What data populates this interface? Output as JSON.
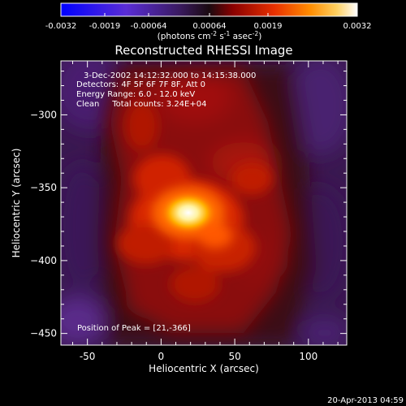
{
  "colorbar": {
    "ticks": [
      "-0.0032",
      "-0.0019",
      "-0.00064",
      "0.00064",
      "0.0019",
      "0.0032"
    ],
    "unit_main": "(photons cm",
    "unit_sup1": "-2",
    "unit_mid": " s",
    "unit_sup2": "-1",
    "unit_mid2": " asec",
    "unit_sup3": "-2",
    "unit_end": ")",
    "colors": [
      "#0000ff",
      "#5a2dd6",
      "#3a1a60",
      "#1a0a10",
      "#8a0000",
      "#e83000",
      "#ff8c00",
      "#ffd060",
      "#ffffff"
    ]
  },
  "plot": {
    "title": "Reconstructed RHESSI Image",
    "xlabel": "Heliocentric X (arcsec)",
    "ylabel": "Heliocentric Y (arcsec)",
    "xticks": [
      "-50",
      "0",
      "50",
      "100"
    ],
    "yticks": [
      "-300",
      "-350",
      "-400",
      "-450"
    ],
    "info": [
      "3-Dec-2002 14:12:32.000 to 14:15:38.000",
      "Detectors: 4F 5F 6F 7F 8F, Att 0",
      "Energy Range: 6.0 - 12.0 keV",
      "Clean     Total counts: 3.24E+04"
    ],
    "peak_label": "Position of Peak = [21,-366]",
    "peak": {
      "x": 21,
      "y": -366
    },
    "x_range": [
      -68,
      126
    ],
    "y_range": [
      -458,
      -263
    ]
  },
  "footer": {
    "timestamp": "20-Apr-2013 04:59"
  }
}
